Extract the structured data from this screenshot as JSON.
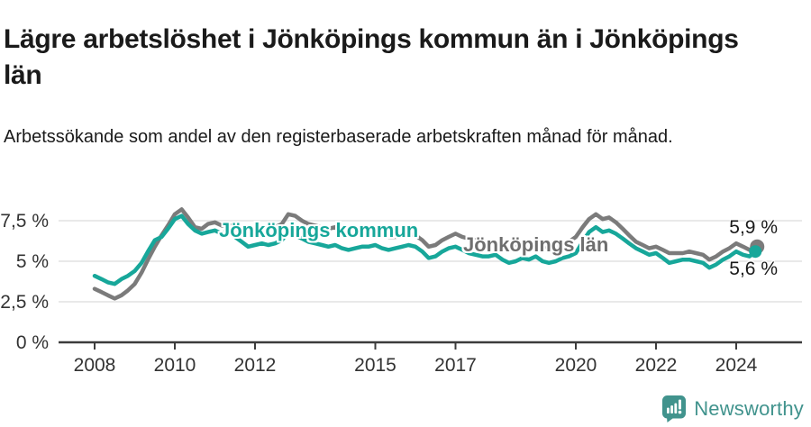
{
  "header": {
    "title": "Lägre arbetslöshet i Jönköpings kommun än i Jönköpings län",
    "subtitle": "Arbetssökande som andel av den registerbaserade arbetskraften månad för månad."
  },
  "footer": {
    "brand": "Newsworthy"
  },
  "colors": {
    "kommun_teal": "#17a79a",
    "lan_gray": "#7b7b7b",
    "brand_teal": "#41938d",
    "grid": "#dcdcdc",
    "axis": "#3c3c3c",
    "tick_text": "#333333"
  },
  "chart_data": {
    "type": "line",
    "title": "Lägre arbetslöshet i Jönköpings kommun än i Jönköpings län",
    "y_unit": "%",
    "ylim": [
      0,
      8.8
    ],
    "xlim": [
      2007.1,
      2025.4
    ],
    "grid": "horizontal",
    "legend_position": "inline-labels",
    "y_ticks": [
      {
        "value": 0,
        "label": "0 %"
      },
      {
        "value": 2.5,
        "label": "2,5 %"
      },
      {
        "value": 5,
        "label": "5 %"
      },
      {
        "value": 7.5,
        "label": "7,5 %"
      }
    ],
    "x_ticks": [
      {
        "value": 2008,
        "label": "2008"
      },
      {
        "value": 2010,
        "label": "2010"
      },
      {
        "value": 2012,
        "label": "2012"
      },
      {
        "value": 2015,
        "label": "2015"
      },
      {
        "value": 2017,
        "label": "2017"
      },
      {
        "value": 2020,
        "label": "2020"
      },
      {
        "value": 2022,
        "label": "2022"
      },
      {
        "value": 2024,
        "label": "2024"
      }
    ],
    "x": [
      2008,
      2008.17,
      2008.33,
      2008.5,
      2008.67,
      2008.83,
      2009,
      2009.17,
      2009.33,
      2009.5,
      2009.67,
      2009.83,
      2010,
      2010.17,
      2010.33,
      2010.5,
      2010.67,
      2010.83,
      2011,
      2011.17,
      2011.33,
      2011.5,
      2011.67,
      2011.83,
      2012,
      2012.17,
      2012.33,
      2012.5,
      2012.67,
      2012.83,
      2013,
      2013.17,
      2013.33,
      2013.5,
      2013.67,
      2013.83,
      2014,
      2014.17,
      2014.33,
      2014.5,
      2014.67,
      2014.83,
      2015,
      2015.17,
      2015.33,
      2015.5,
      2015.67,
      2015.83,
      2016,
      2016.17,
      2016.33,
      2016.5,
      2016.67,
      2016.83,
      2017,
      2017.17,
      2017.33,
      2017.5,
      2017.67,
      2017.83,
      2018,
      2018.17,
      2018.33,
      2018.5,
      2018.67,
      2018.83,
      2019,
      2019.17,
      2019.33,
      2019.5,
      2019.67,
      2019.83,
      2020,
      2020.17,
      2020.33,
      2020.5,
      2020.67,
      2020.83,
      2021,
      2021.17,
      2021.33,
      2021.5,
      2021.67,
      2021.83,
      2022,
      2022.17,
      2022.33,
      2022.5,
      2022.67,
      2022.83,
      2023,
      2023.17,
      2023.33,
      2023.5,
      2023.67,
      2023.83,
      2024,
      2024.17,
      2024.33,
      2024.5
    ],
    "series": [
      {
        "name": "Jönköpings kommun",
        "color": "#17a79a",
        "end_label": "5,6 %",
        "end_value": 5.6,
        "values": [
          4.1,
          3.9,
          3.7,
          3.6,
          3.9,
          4.1,
          4.4,
          4.9,
          5.6,
          6.3,
          6.5,
          7.0,
          7.6,
          7.8,
          7.3,
          6.9,
          6.7,
          6.8,
          6.9,
          6.7,
          6.9,
          6.5,
          6.2,
          5.9,
          6.0,
          6.1,
          6.0,
          6.1,
          6.3,
          6.8,
          6.6,
          6.4,
          6.2,
          6.1,
          6.0,
          5.9,
          6.0,
          5.8,
          5.7,
          5.8,
          5.9,
          5.9,
          6.0,
          5.8,
          5.7,
          5.8,
          5.9,
          6.0,
          5.9,
          5.6,
          5.2,
          5.3,
          5.6,
          5.8,
          5.9,
          5.7,
          5.5,
          5.4,
          5.3,
          5.3,
          5.4,
          5.1,
          4.9,
          5.0,
          5.2,
          5.1,
          5.3,
          5.0,
          4.9,
          5.0,
          5.2,
          5.3,
          5.5,
          6.2,
          6.8,
          7.1,
          6.8,
          6.9,
          6.7,
          6.4,
          6.1,
          5.8,
          5.6,
          5.4,
          5.5,
          5.2,
          4.9,
          5.0,
          5.1,
          5.1,
          5.0,
          4.9,
          4.6,
          4.8,
          5.1,
          5.3,
          5.6,
          5.4,
          5.3,
          5.6
        ]
      },
      {
        "name": "Jönköpings län",
        "color": "#7b7b7b",
        "end_label": "5,9 %",
        "end_value": 5.9,
        "values": [
          3.3,
          3.1,
          2.9,
          2.7,
          2.9,
          3.2,
          3.6,
          4.3,
          5.1,
          5.9,
          6.6,
          7.2,
          7.9,
          8.2,
          7.7,
          7.1,
          7.0,
          7.3,
          7.4,
          7.2,
          7.3,
          7.0,
          6.9,
          7.0,
          7.0,
          7.1,
          7.0,
          7.1,
          7.3,
          7.9,
          7.8,
          7.5,
          7.3,
          7.2,
          7.1,
          7.0,
          7.1,
          6.9,
          6.7,
          6.6,
          6.7,
          6.8,
          6.9,
          6.7,
          6.5,
          6.5,
          6.6,
          6.7,
          6.6,
          6.3,
          5.9,
          6.0,
          6.3,
          6.5,
          6.7,
          6.5,
          6.4,
          6.3,
          6.2,
          6.2,
          6.2,
          6.0,
          5.9,
          6.0,
          6.1,
          6.0,
          6.1,
          5.9,
          5.9,
          6.0,
          6.1,
          6.2,
          6.5,
          7.1,
          7.6,
          7.9,
          7.6,
          7.7,
          7.4,
          7.0,
          6.6,
          6.2,
          6.0,
          5.8,
          5.9,
          5.7,
          5.5,
          5.5,
          5.5,
          5.6,
          5.5,
          5.4,
          5.1,
          5.3,
          5.6,
          5.8,
          6.1,
          5.9,
          5.7,
          5.9
        ]
      }
    ]
  }
}
